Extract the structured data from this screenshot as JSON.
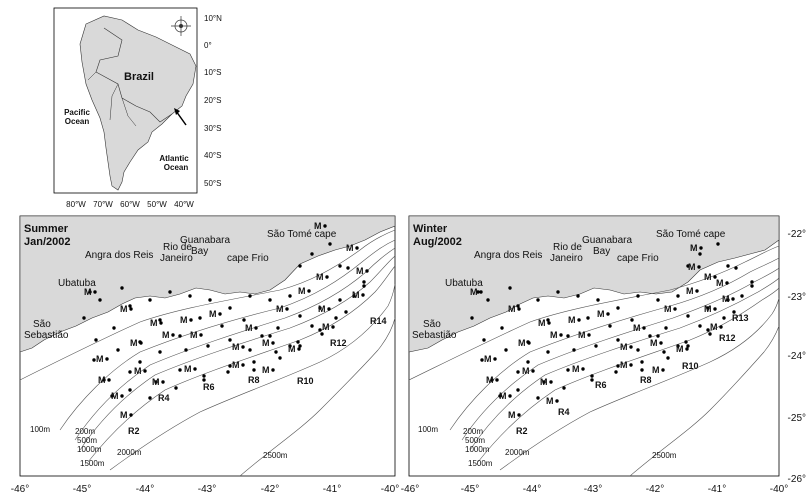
{
  "inset": {
    "lat_labels": [
      "10°N",
      "0°",
      "10°S",
      "20°S",
      "30°S",
      "40°S",
      "50°S"
    ],
    "lon_labels": [
      "80°W",
      "70°W",
      "60°W",
      "50°W",
      "40°W"
    ],
    "labels": {
      "country": "Brazil",
      "pacific_1": "Pacific",
      "pacific_2": "Ocean",
      "atlantic_1": "Atlantic",
      "atlantic_2": "Ocean"
    }
  },
  "summer": {
    "title_1": "Summer",
    "title_2": "Jan/2002",
    "transects": [
      "R2",
      "R4",
      "R6",
      "R8",
      "R10",
      "R12",
      "R14"
    ]
  },
  "winter": {
    "title_1": "Winter",
    "title_2": "Aug/2002",
    "transects": [
      "R2",
      "R4",
      "R6",
      "R8",
      "R10",
      "R12",
      "R13"
    ]
  },
  "places": {
    "sao_tome": "São Tomé cape",
    "guanabara_1": "Guanabara",
    "guanabara_2": "Bay",
    "rio_1": "Rio de",
    "rio_2": "Janeiro",
    "angra": "Angra dos Reis",
    "cape_frio": "cape Frio",
    "ubatuba": "Ubatuba",
    "sao_seb_1": "São",
    "sao_seb_2": "Sebastião"
  },
  "isobaths": [
    "100m",
    "200m",
    "500m",
    "1000m",
    "1500m",
    "2000m",
    "2500m"
  ],
  "station_marker": "M",
  "x_ticks": [
    "-46°",
    "-45°",
    "-44°",
    "-43°",
    "-42°",
    "-41°",
    "-40°"
  ],
  "y_ticks": [
    "-22°",
    "-23°",
    "-24°",
    "-25°",
    "-26°"
  ],
  "colors": {
    "land": "#d9d9d9",
    "water": "#ffffff",
    "line": "#555555"
  }
}
